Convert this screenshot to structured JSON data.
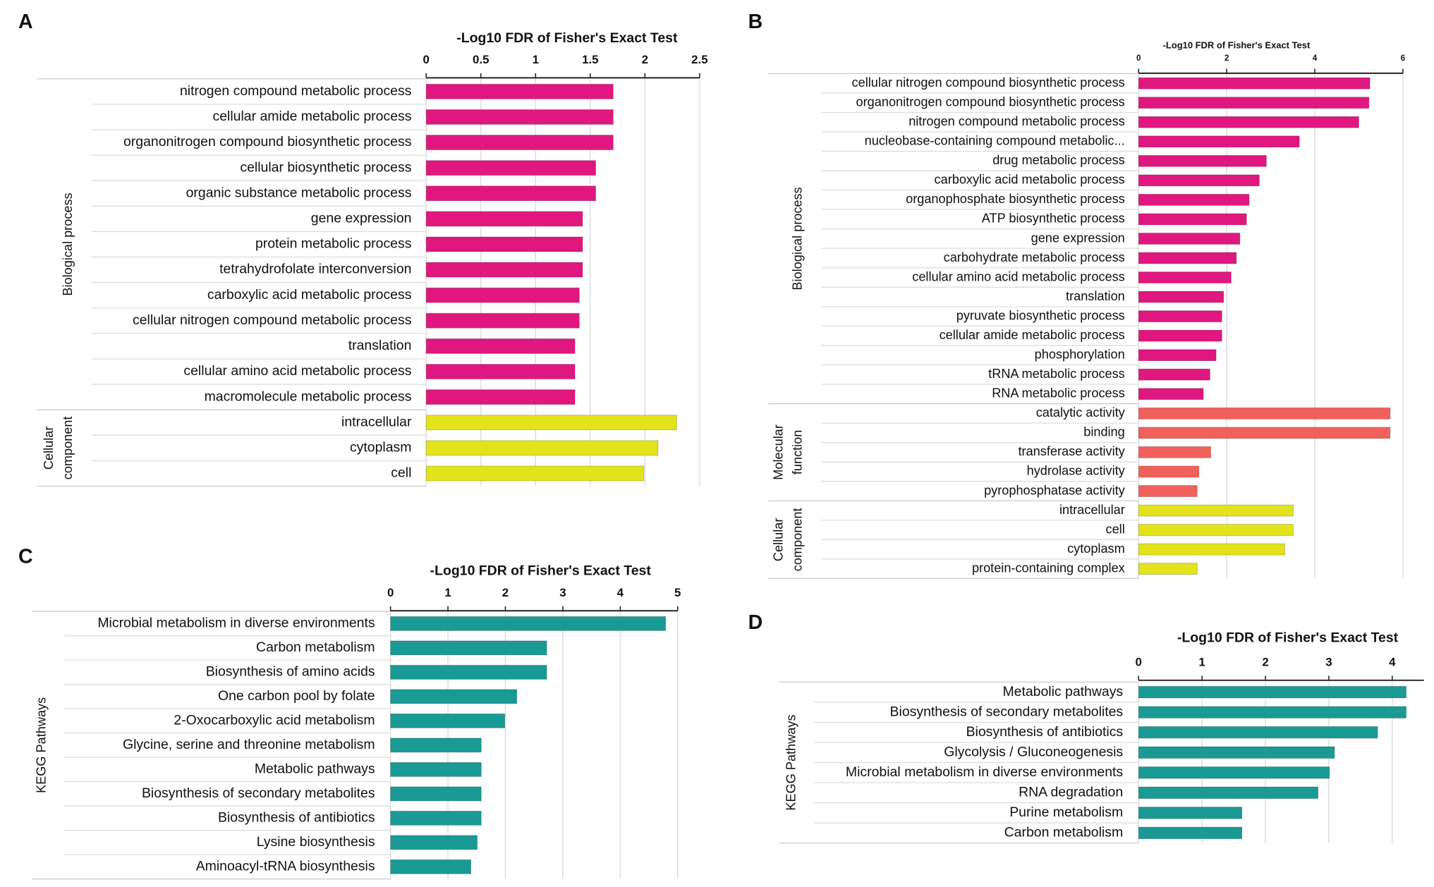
{
  "chart_data": [
    {
      "type": "bar",
      "panel": "A",
      "title": "-Log10 FDR of Fisher's Exact Test",
      "xlim": [
        0,
        2.5
      ],
      "xticks": [
        0,
        0.5,
        1,
        1.5,
        2,
        2.5
      ],
      "series": [
        {
          "name": [
            "Biological process"
          ],
          "color": "#e0177f",
          "categories": [
            "nitrogen compound metabolic process",
            "cellular amide metabolic process",
            "organonitrogen compound biosynthetic process",
            "cellular biosynthetic process",
            "organic substance metabolic process",
            "gene expression",
            "protein metabolic process",
            "tetrahydrofolate interconversion",
            "carboxylic acid metabolic process",
            "cellular nitrogen compound metabolic process",
            "translation",
            "cellular amino acid metabolic process",
            "macromolecule metabolic process"
          ],
          "values": [
            1.71,
            1.71,
            1.71,
            1.55,
            1.55,
            1.43,
            1.43,
            1.43,
            1.4,
            1.4,
            1.36,
            1.36,
            1.36
          ]
        },
        {
          "name": [
            "Cellular",
            "component"
          ],
          "color": "#e3e31c",
          "categories": [
            "intracellular",
            "cytoplasm",
            "cell"
          ],
          "values": [
            2.29,
            2.12,
            1.99
          ]
        }
      ]
    },
    {
      "type": "bar",
      "panel": "B",
      "title": "-Log10 FDR of Fisher's Exact Test",
      "xlim": [
        0,
        6
      ],
      "xticks": [
        0,
        2,
        4,
        6
      ],
      "series": [
        {
          "name": [
            "Biological process"
          ],
          "color": "#e0177f",
          "categories": [
            "cellular nitrogen compound biosynthetic process",
            "organonitrogen compound biosynthetic process",
            "nitrogen compound metabolic process",
            "nucleobase-containing compound metabolic...",
            "drug metabolic process",
            "carboxylic acid metabolic process",
            "organophosphate biosynthetic process",
            "ATP biosynthetic process",
            "gene expression",
            "carbohydrate metabolic process",
            "cellular amino acid metabolic process",
            "translation",
            "pyruvate biosynthetic process",
            "cellular amide metabolic process",
            "phosphorylation",
            "tRNA metabolic process",
            "RNA metabolic process"
          ],
          "values": [
            5.25,
            5.23,
            5.0,
            3.65,
            2.9,
            2.74,
            2.51,
            2.45,
            2.3,
            2.22,
            2.1,
            1.93,
            1.89,
            1.89,
            1.76,
            1.62,
            1.47
          ]
        },
        {
          "name": [
            "Molecular",
            "function"
          ],
          "color": "#f2605c",
          "categories": [
            "catalytic activity",
            "binding",
            "transferase activity",
            "hydrolase activity",
            "pyrophosphatase activity"
          ],
          "values": [
            5.71,
            5.71,
            1.64,
            1.37,
            1.33
          ]
        },
        {
          "name": [
            "Cellular",
            "component"
          ],
          "color": "#e3e31c",
          "categories": [
            "intracellular",
            "cell",
            "cytoplasm",
            "protein-containing complex"
          ],
          "values": [
            3.51,
            3.51,
            3.32,
            1.33
          ]
        }
      ]
    },
    {
      "type": "bar",
      "panel": "C",
      "title": "-Log10 FDR of Fisher's Exact Test",
      "xlim": [
        0,
        5
      ],
      "xticks": [
        0,
        1,
        2,
        3,
        4,
        5
      ],
      "series": [
        {
          "name": [
            "KEGG Pathways"
          ],
          "color": "#1a9a94",
          "categories": [
            "Microbial metabolism in diverse environments",
            "Carbon metabolism",
            "Biosynthesis of amino acids",
            "One carbon pool by folate",
            "2-Oxocarboxylic acid metabolism",
            "Glycine, serine and threonine metabolism",
            "Metabolic pathways",
            "Biosynthesis of secondary metabolites",
            "Biosynthesis of antibiotics",
            "Lysine biosynthesis",
            "Aminoacyl-tRNA biosynthesis"
          ],
          "values": [
            4.79,
            2.72,
            2.72,
            2.2,
            1.99,
            1.58,
            1.58,
            1.58,
            1.58,
            1.51,
            1.4
          ]
        }
      ]
    },
    {
      "type": "bar",
      "panel": "D",
      "title": "-Log10 FDR of Fisher's Exact Test",
      "xlim": [
        0,
        4.5
      ],
      "xticks": [
        0,
        1,
        2,
        3,
        4
      ],
      "series": [
        {
          "name": [
            "KEGG Pathways"
          ],
          "color": "#1a9a94",
          "categories": [
            "Metabolic pathways",
            "Biosynthesis of secondary metabolites",
            "Biosynthesis of antibiotics",
            "Glycolysis / Gluconeogenesis",
            "Microbial metabolism in diverse environments",
            "RNA degradation",
            "Purine metabolism",
            "Carbon metabolism"
          ],
          "values": [
            4.22,
            4.22,
            3.77,
            3.09,
            3.01,
            2.83,
            1.63,
            1.63
          ]
        }
      ]
    }
  ]
}
